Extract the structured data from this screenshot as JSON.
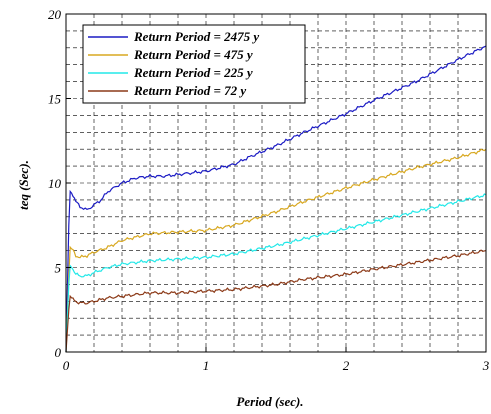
{
  "chart_data": {
    "type": "line",
    "xlabel": "Period (sec).",
    "ylabel": "teq (Sec).",
    "xlim": [
      0,
      3
    ],
    "ylim": [
      0,
      20
    ],
    "xticks": [
      0,
      1,
      2,
      3
    ],
    "xtick_labels": [
      "0",
      "1",
      "2",
      "3"
    ],
    "yticks": [
      0,
      5,
      10,
      15,
      20
    ],
    "ytick_labels": [
      "0",
      "5",
      "10",
      "15",
      "20"
    ],
    "grid": true,
    "legend_position": "top-left",
    "series": [
      {
        "name": "Return Period = 2475 y",
        "color": "#1c1cc4",
        "x": [
          0,
          0.02,
          0.03,
          0.05,
          0.07,
          0.1,
          0.15,
          0.2,
          0.25,
          0.3,
          0.4,
          0.5,
          0.6,
          0.7,
          0.8,
          0.9,
          1.0,
          1.1,
          1.2,
          1.3,
          1.5,
          1.7,
          2.0,
          2.2,
          2.5,
          2.8,
          3.0
        ],
        "y": [
          0,
          7.5,
          9.5,
          9.3,
          8.9,
          8.6,
          8.4,
          8.7,
          9.0,
          9.5,
          10.0,
          10.3,
          10.4,
          10.4,
          10.5,
          10.6,
          10.7,
          10.9,
          11.1,
          11.5,
          12.2,
          13.0,
          14.1,
          14.9,
          16.0,
          17.3,
          18.1
        ]
      },
      {
        "name": "Return Period = 475 y",
        "color": "#d8a820",
        "x": [
          0,
          0.02,
          0.03,
          0.05,
          0.07,
          0.1,
          0.15,
          0.2,
          0.3,
          0.4,
          0.5,
          0.6,
          0.8,
          1.0,
          1.2,
          1.5,
          1.7,
          2.0,
          2.2,
          2.5,
          2.8,
          3.0
        ],
        "y": [
          0,
          4.5,
          6.2,
          6.0,
          5.7,
          5.6,
          5.7,
          5.9,
          6.2,
          6.6,
          6.8,
          7.0,
          7.1,
          7.2,
          7.5,
          8.3,
          8.9,
          9.7,
          10.2,
          10.9,
          11.5,
          12.0
        ]
      },
      {
        "name": "Return Period = 225 y",
        "color": "#22e8e8",
        "x": [
          0,
          0.02,
          0.03,
          0.05,
          0.07,
          0.1,
          0.15,
          0.2,
          0.3,
          0.4,
          0.5,
          0.6,
          0.8,
          1.0,
          1.2,
          1.5,
          1.7,
          2.0,
          2.2,
          2.5,
          2.8,
          3.0
        ],
        "y": [
          0,
          4.0,
          5.1,
          4.9,
          4.6,
          4.5,
          4.5,
          4.7,
          5.0,
          5.2,
          5.3,
          5.4,
          5.5,
          5.6,
          5.8,
          6.3,
          6.7,
          7.3,
          7.7,
          8.3,
          8.9,
          9.3
        ]
      },
      {
        "name": "Return Period = 72 y",
        "color": "#8c3a18",
        "x": [
          0,
          0.02,
          0.03,
          0.05,
          0.07,
          0.1,
          0.15,
          0.2,
          0.3,
          0.4,
          0.5,
          0.6,
          0.8,
          1.0,
          1.2,
          1.5,
          1.7,
          2.0,
          2.2,
          2.5,
          2.8,
          3.0
        ],
        "y": [
          0,
          2.5,
          3.3,
          3.1,
          3.0,
          2.9,
          2.9,
          3.0,
          3.2,
          3.3,
          3.4,
          3.5,
          3.5,
          3.6,
          3.7,
          4.0,
          4.3,
          4.6,
          4.9,
          5.3,
          5.7,
          6.0
        ]
      }
    ]
  }
}
